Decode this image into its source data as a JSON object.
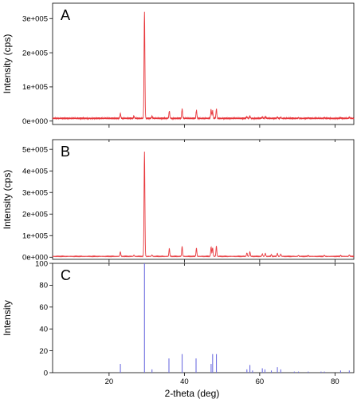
{
  "chart_data": {
    "type": "line",
    "shared_x": {
      "label": "2-theta (deg)",
      "range": [
        5,
        85
      ],
      "ticks": [
        20,
        40,
        60,
        80
      ],
      "tick_labels": [
        "20",
        "40",
        "60",
        "80"
      ]
    },
    "panels": [
      {
        "label": "A",
        "type": "line",
        "ylabel": "Intensity (cps)",
        "ylim": [
          -10000,
          345000
        ],
        "yticks": [
          0,
          100000,
          200000,
          300000
        ],
        "ytick_labels": [
          "0e+000",
          "1e+005",
          "2e+005",
          "3e+005"
        ],
        "color": "#e8383d",
        "baseline": 8000,
        "peaks": [
          {
            "x": 23.0,
            "y": 22000
          },
          {
            "x": 26.6,
            "y": 15000
          },
          {
            "x": 29.4,
            "y": 322000
          },
          {
            "x": 31.4,
            "y": 14000
          },
          {
            "x": 36.0,
            "y": 30000
          },
          {
            "x": 39.4,
            "y": 36000
          },
          {
            "x": 43.2,
            "y": 32000
          },
          {
            "x": 47.1,
            "y": 34000
          },
          {
            "x": 47.5,
            "y": 30000
          },
          {
            "x": 48.5,
            "y": 36000
          },
          {
            "x": 56.6,
            "y": 13000
          },
          {
            "x": 57.4,
            "y": 15000
          },
          {
            "x": 60.7,
            "y": 12000
          },
          {
            "x": 61.5,
            "y": 13000
          },
          {
            "x": 64.7,
            "y": 12000
          },
          {
            "x": 65.6,
            "y": 11000
          },
          {
            "x": 70.3,
            "y": 10000
          },
          {
            "x": 72.9,
            "y": 10000
          },
          {
            "x": 77.2,
            "y": 10000
          },
          {
            "x": 81.5,
            "y": 10000
          },
          {
            "x": 83.8,
            "y": 11000
          }
        ]
      },
      {
        "label": "B",
        "type": "line",
        "ylabel": "Intensity (cps)",
        "ylim": [
          -10000,
          545000
        ],
        "yticks": [
          0,
          100000,
          200000,
          300000,
          400000,
          500000
        ],
        "ytick_labels": [
          "0e+000",
          "1e+005",
          "2e+005",
          "3e+005",
          "4e+005",
          "5e+005"
        ],
        "color": "#e8383d",
        "baseline": 4000,
        "peaks": [
          {
            "x": 23.0,
            "y": 25000
          },
          {
            "x": 26.6,
            "y": 10000
          },
          {
            "x": 29.4,
            "y": 490000
          },
          {
            "x": 31.4,
            "y": 10000
          },
          {
            "x": 36.0,
            "y": 40000
          },
          {
            "x": 39.4,
            "y": 50000
          },
          {
            "x": 43.2,
            "y": 42000
          },
          {
            "x": 47.1,
            "y": 48000
          },
          {
            "x": 47.5,
            "y": 44000
          },
          {
            "x": 48.5,
            "y": 52000
          },
          {
            "x": 56.6,
            "y": 20000
          },
          {
            "x": 57.4,
            "y": 25000
          },
          {
            "x": 60.7,
            "y": 15000
          },
          {
            "x": 61.5,
            "y": 18000
          },
          {
            "x": 63.1,
            "y": 12000
          },
          {
            "x": 64.7,
            "y": 18000
          },
          {
            "x": 65.6,
            "y": 14000
          },
          {
            "x": 70.3,
            "y": 8000
          },
          {
            "x": 72.9,
            "y": 8000
          },
          {
            "x": 77.2,
            "y": 8000
          },
          {
            "x": 81.5,
            "y": 8000
          },
          {
            "x": 83.8,
            "y": 10000
          }
        ]
      },
      {
        "label": "C",
        "type": "bar",
        "ylabel": "Intensity",
        "ylim": [
          0,
          100
        ],
        "yticks": [
          0,
          20,
          40,
          60,
          80,
          100
        ],
        "ytick_labels": [
          "0",
          "20",
          "40",
          "60",
          "80",
          "100"
        ],
        "color": "#6f6fe0",
        "sticks": [
          {
            "x": 23.0,
            "y": 8
          },
          {
            "x": 29.4,
            "y": 100
          },
          {
            "x": 31.4,
            "y": 3
          },
          {
            "x": 35.9,
            "y": 13
          },
          {
            "x": 39.4,
            "y": 17
          },
          {
            "x": 43.1,
            "y": 13
          },
          {
            "x": 47.1,
            "y": 8
          },
          {
            "x": 47.5,
            "y": 17
          },
          {
            "x": 48.5,
            "y": 17
          },
          {
            "x": 56.6,
            "y": 3
          },
          {
            "x": 57.4,
            "y": 7
          },
          {
            "x": 58.1,
            "y": 2
          },
          {
            "x": 60.7,
            "y": 4
          },
          {
            "x": 61.4,
            "y": 3
          },
          {
            "x": 63.1,
            "y": 2
          },
          {
            "x": 64.7,
            "y": 5
          },
          {
            "x": 65.6,
            "y": 3
          },
          {
            "x": 69.2,
            "y": 1
          },
          {
            "x": 70.3,
            "y": 1
          },
          {
            "x": 72.9,
            "y": 1
          },
          {
            "x": 76.3,
            "y": 1
          },
          {
            "x": 77.2,
            "y": 1
          },
          {
            "x": 81.5,
            "y": 2
          },
          {
            "x": 83.8,
            "y": 2
          }
        ]
      }
    ]
  }
}
